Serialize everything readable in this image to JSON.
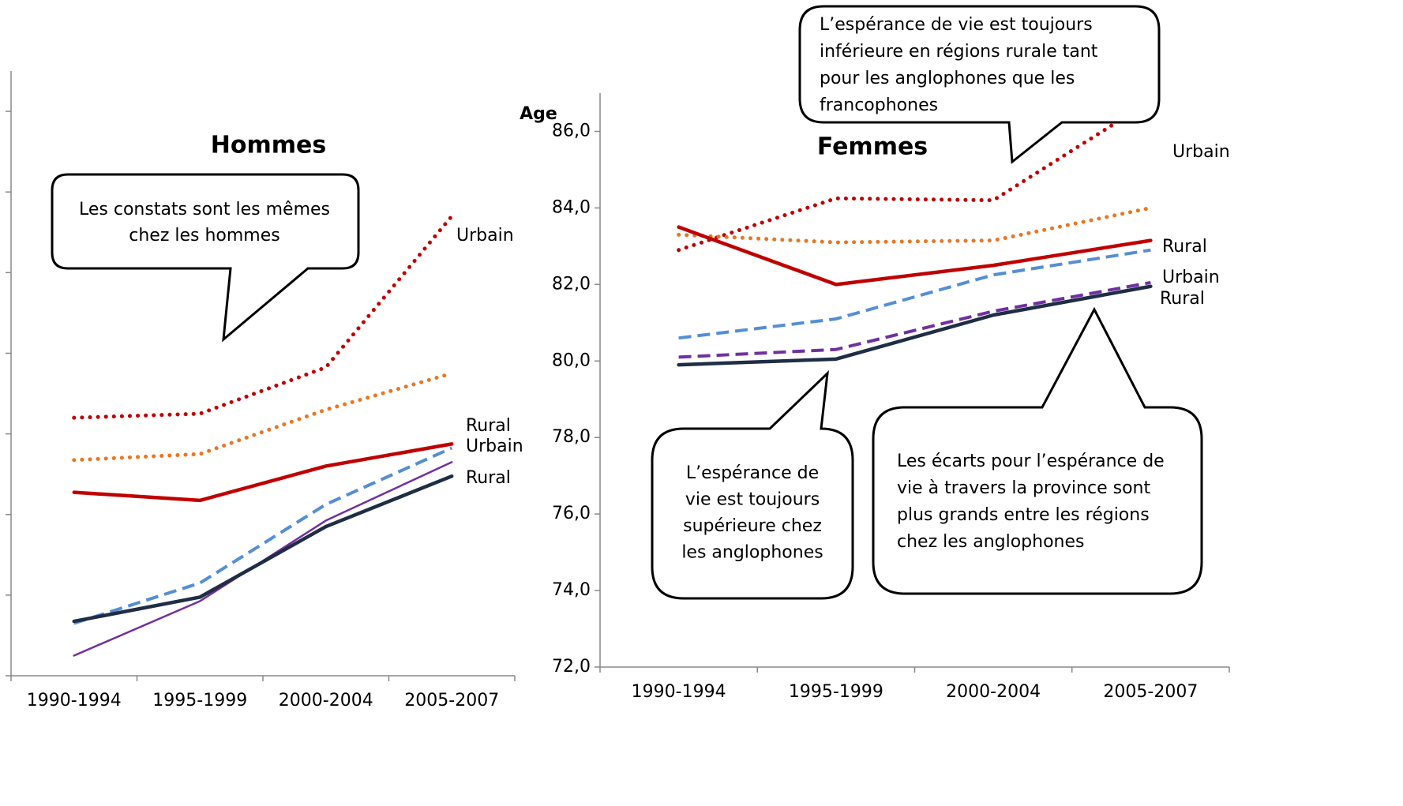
{
  "chart_data": [
    {
      "type": "line",
      "title": "Hommes",
      "categories": [
        "1990-1994",
        "1995-1999",
        "2000-2004",
        "2005-2007"
      ],
      "ylim": [
        72,
        87
      ],
      "yticks": [
        72,
        74,
        76,
        78,
        80,
        82,
        84,
        86
      ],
      "ytick_labels": false,
      "series": [
        {
          "color": "#c00000",
          "style": "dotted",
          "values": [
            78.4,
            78.5,
            79.65,
            83.4
          ]
        },
        {
          "color": "#e87722",
          "style": "dotted",
          "values": [
            77.35,
            77.5,
            78.6,
            79.5
          ]
        },
        {
          "color": "#c00000",
          "style": "solid",
          "values": [
            76.55,
            76.35,
            77.2,
            77.75
          ]
        },
        {
          "color": "#558ed5",
          "style": "dashed",
          "values": [
            73.3,
            74.3,
            76.25,
            77.65
          ]
        },
        {
          "color": "#7030a0",
          "style": "thin",
          "values": [
            72.5,
            73.85,
            75.85,
            77.3
          ]
        },
        {
          "color": "#1f2d45",
          "style": "solid",
          "values": [
            73.35,
            73.95,
            75.7,
            76.95
          ]
        }
      ],
      "annotations": [
        "Urbain",
        "Rural",
        "Urbain",
        "Rural"
      ],
      "callouts": [
        [
          "Les constats sont les mêmes",
          "chez les hommes"
        ]
      ]
    },
    {
      "type": "line",
      "title": "Femmes",
      "y_label": "Age",
      "categories": [
        "1990-1994",
        "1995-1999",
        "2000-2004",
        "2005-2007"
      ],
      "ylim": [
        72,
        87
      ],
      "yticks": [
        {
          "value": 72,
          "label": "72,0"
        },
        {
          "value": 74,
          "label": "74,0"
        },
        {
          "value": 76,
          "label": "76,0"
        },
        {
          "value": 78,
          "label": "78,0"
        },
        {
          "value": 80,
          "label": "80,0"
        },
        {
          "value": 82,
          "label": "82,0"
        },
        {
          "value": 84,
          "label": "84,0"
        },
        {
          "value": 86,
          "label": "86,0"
        }
      ],
      "ytick_labels": true,
      "series": [
        {
          "color": "#c00000",
          "style": "dotted",
          "values": [
            82.9,
            84.25,
            84.2,
            86.8
          ]
        },
        {
          "color": "#e87722",
          "style": "dotted",
          "values": [
            83.3,
            83.1,
            83.15,
            84.0
          ]
        },
        {
          "color": "#c00000",
          "style": "solid",
          "values": [
            83.5,
            82.0,
            82.5,
            83.15
          ]
        },
        {
          "color": "#558ed5",
          "style": "dashed",
          "values": [
            80.6,
            81.1,
            82.25,
            82.9
          ]
        },
        {
          "color": "#7030a0",
          "style": "dashed",
          "values": [
            80.1,
            80.3,
            81.3,
            82.05
          ]
        },
        {
          "color": "#1f2d45",
          "style": "solid",
          "values": [
            79.9,
            80.05,
            81.2,
            81.95
          ]
        }
      ],
      "annotations": [
        "Urbain",
        "Rural",
        "Urbain",
        "Rural"
      ],
      "callouts": [
        [
          "L’espérance de vie est toujours",
          "inférieure en régions rurale tant",
          "pour les anglophones que les",
          "francophones"
        ],
        [
          "L’espérance de",
          "vie est toujours",
          "supérieure chez",
          "les anglophones"
        ],
        [
          "Les écarts pour l’espérance de",
          "vie à travers la province sont",
          "plus grands entre les régions",
          "chez les anglophones"
        ]
      ]
    }
  ]
}
